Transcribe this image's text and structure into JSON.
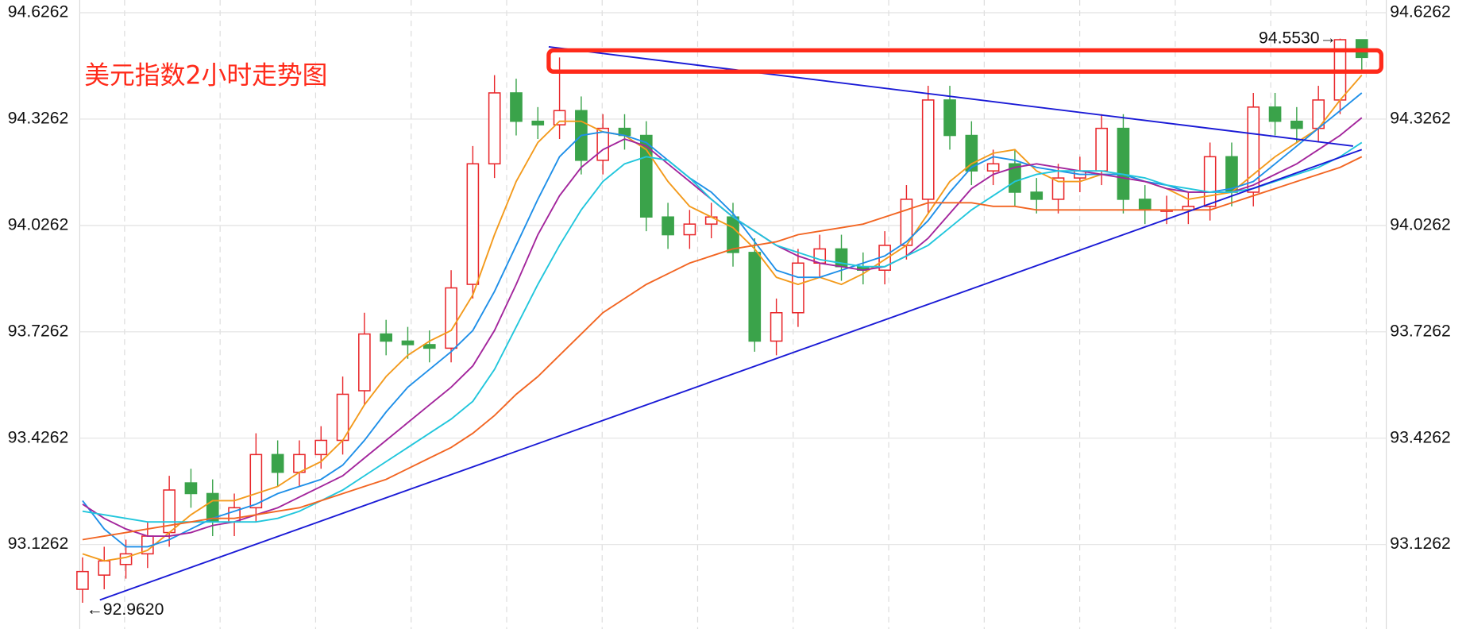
{
  "chart_data": {
    "type": "candlestick",
    "title": "美元指数2小时走势图",
    "ylim": [
      92.888,
      94.662
    ],
    "yticks": [
      93.1262,
      93.4262,
      93.7262,
      94.0262,
      94.3262,
      94.6262
    ],
    "grid": true,
    "up_color": "#e8262a",
    "down_color": "#3aa34a",
    "open": [
      93.0,
      93.04,
      93.07,
      93.1,
      93.16,
      93.3,
      93.27,
      93.19,
      93.23,
      93.38,
      93.33,
      93.38,
      93.42,
      93.56,
      93.72,
      93.7,
      93.69,
      93.68,
      93.86,
      94.2,
      94.4,
      94.32,
      94.31,
      94.35,
      94.21,
      94.3,
      94.28,
      94.05,
      94.0,
      94.03,
      94.05,
      93.95,
      93.7,
      93.78,
      93.92,
      93.96,
      93.91,
      93.9,
      93.97,
      94.1,
      94.38,
      94.28,
      94.18,
      94.2,
      94.12,
      94.1,
      94.16,
      94.18,
      94.3,
      94.1,
      94.07,
      94.07,
      94.08,
      94.22,
      94.12,
      94.36,
      94.32,
      94.3,
      94.38,
      94.55
    ],
    "high": [
      93.09,
      93.12,
      93.14,
      93.19,
      93.32,
      93.34,
      93.31,
      93.27,
      93.44,
      93.42,
      93.42,
      93.46,
      93.6,
      93.78,
      93.76,
      93.74,
      93.73,
      93.9,
      94.25,
      94.45,
      94.44,
      94.36,
      94.5,
      94.39,
      94.34,
      94.34,
      94.32,
      94.09,
      94.07,
      94.09,
      94.09,
      93.99,
      93.82,
      93.96,
      94.0,
      94.0,
      93.95,
      94.01,
      94.14,
      94.42,
      94.42,
      94.32,
      94.24,
      94.24,
      94.16,
      94.2,
      94.22,
      94.34,
      94.34,
      94.14,
      94.11,
      94.12,
      94.26,
      94.26,
      94.4,
      94.4,
      94.36,
      94.42,
      94.553,
      94.54
    ],
    "low": [
      92.962,
      93.0,
      93.03,
      93.06,
      93.12,
      93.23,
      93.15,
      93.15,
      93.19,
      93.29,
      93.29,
      93.34,
      93.38,
      93.52,
      93.66,
      93.65,
      93.64,
      93.64,
      93.82,
      94.16,
      94.28,
      94.27,
      94.27,
      94.17,
      94.17,
      94.24,
      94.01,
      93.96,
      93.96,
      93.99,
      93.91,
      93.67,
      93.66,
      93.74,
      93.88,
      93.87,
      93.86,
      93.86,
      93.93,
      94.06,
      94.24,
      94.14,
      94.14,
      94.08,
      94.06,
      94.06,
      94.12,
      94.14,
      94.06,
      94.03,
      94.03,
      94.03,
      94.04,
      94.08,
      94.08,
      94.28,
      94.26,
      94.26,
      94.34,
      94.46
    ],
    "close": [
      93.05,
      93.08,
      93.1,
      93.15,
      93.28,
      93.27,
      93.19,
      93.23,
      93.38,
      93.33,
      93.38,
      93.42,
      93.55,
      93.72,
      93.7,
      93.69,
      93.68,
      93.85,
      94.2,
      94.4,
      94.32,
      94.31,
      94.35,
      94.21,
      94.3,
      94.28,
      94.05,
      94.0,
      94.03,
      94.05,
      93.95,
      93.7,
      93.78,
      93.92,
      93.96,
      93.91,
      93.9,
      93.97,
      94.1,
      94.38,
      94.28,
      94.18,
      94.2,
      94.12,
      94.1,
      94.16,
      94.18,
      94.3,
      94.1,
      94.07,
      94.07,
      94.08,
      94.22,
      94.12,
      94.36,
      94.32,
      94.3,
      94.38,
      94.55,
      94.5
    ],
    "series": [
      {
        "color": "#f39a1c",
        "values": [
          93.1,
          93.08,
          93.09,
          93.11,
          93.16,
          93.21,
          93.25,
          93.25,
          93.27,
          93.29,
          93.33,
          93.36,
          93.42,
          93.52,
          93.6,
          93.66,
          93.7,
          93.73,
          93.83,
          94.0,
          94.15,
          94.26,
          94.32,
          94.32,
          94.29,
          94.28,
          94.24,
          94.15,
          94.08,
          94.05,
          94.02,
          93.96,
          93.88,
          93.86,
          93.88,
          93.86,
          93.89,
          93.93,
          93.97,
          94.06,
          94.15,
          94.2,
          94.23,
          94.24,
          94.18,
          94.15,
          94.15,
          94.17,
          94.17,
          94.15,
          94.13,
          94.1,
          94.11,
          94.12,
          94.17,
          94.22,
          94.26,
          94.3,
          94.38,
          94.45
        ]
      },
      {
        "color": "#1e8fe8",
        "values": [
          93.25,
          93.17,
          93.12,
          93.12,
          93.14,
          93.17,
          93.2,
          93.22,
          93.24,
          93.27,
          93.29,
          93.31,
          93.35,
          93.42,
          93.5,
          93.57,
          93.62,
          93.67,
          93.73,
          93.84,
          93.97,
          94.1,
          94.22,
          94.28,
          94.29,
          94.28,
          94.26,
          94.21,
          94.16,
          94.12,
          94.06,
          93.98,
          93.9,
          93.88,
          93.88,
          93.9,
          93.92,
          93.94,
          93.98,
          94.04,
          94.12,
          94.19,
          94.22,
          94.21,
          94.19,
          94.18,
          94.17,
          94.17,
          94.17,
          94.15,
          94.14,
          94.12,
          94.12,
          94.13,
          94.15,
          94.2,
          94.25,
          94.3,
          94.35,
          94.4
        ]
      },
      {
        "color": "#a3259c",
        "values": [
          93.24,
          93.2,
          93.17,
          93.15,
          93.15,
          93.16,
          93.18,
          93.19,
          93.21,
          93.23,
          93.26,
          93.29,
          93.32,
          93.37,
          93.42,
          93.47,
          93.52,
          93.57,
          93.63,
          93.73,
          93.86,
          94.0,
          94.11,
          94.19,
          94.24,
          94.27,
          94.25,
          94.2,
          94.15,
          94.1,
          94.05,
          94.01,
          93.97,
          93.94,
          93.92,
          93.91,
          93.9,
          93.91,
          93.94,
          93.99,
          94.06,
          94.13,
          94.17,
          94.19,
          94.2,
          94.19,
          94.18,
          94.17,
          94.16,
          94.15,
          94.13,
          94.12,
          94.12,
          94.12,
          94.14,
          94.17,
          94.2,
          94.24,
          94.28,
          94.33
        ]
      },
      {
        "color": "#21c6dc",
        "values": [
          93.22,
          93.21,
          93.2,
          93.19,
          93.19,
          93.19,
          93.19,
          93.19,
          93.19,
          93.2,
          93.22,
          93.25,
          93.28,
          93.32,
          93.36,
          93.4,
          93.44,
          93.48,
          93.53,
          93.62,
          93.74,
          93.86,
          93.97,
          94.07,
          94.15,
          94.2,
          94.22,
          94.21,
          94.16,
          94.1,
          94.05,
          94.01,
          93.97,
          93.95,
          93.93,
          93.92,
          93.91,
          93.91,
          93.94,
          93.97,
          94.02,
          94.07,
          94.11,
          94.15,
          94.17,
          94.18,
          94.18,
          94.18,
          94.17,
          94.16,
          94.14,
          94.13,
          94.12,
          94.12,
          94.13,
          94.15,
          94.17,
          94.19,
          94.22,
          94.26
        ]
      },
      {
        "color": "#f26522",
        "values": [
          93.14,
          93.15,
          93.16,
          93.17,
          93.18,
          93.19,
          93.2,
          93.2,
          93.21,
          93.22,
          93.23,
          93.25,
          93.27,
          93.29,
          93.31,
          93.34,
          93.37,
          93.4,
          93.44,
          93.49,
          93.55,
          93.6,
          93.66,
          93.72,
          93.78,
          93.82,
          93.86,
          93.89,
          93.92,
          93.94,
          93.96,
          93.97,
          93.98,
          94.0,
          94.01,
          94.02,
          94.03,
          94.05,
          94.07,
          94.09,
          94.09,
          94.09,
          94.08,
          94.08,
          94.07,
          94.07,
          94.07,
          94.07,
          94.07,
          94.07,
          94.07,
          94.07,
          94.07,
          94.09,
          94.11,
          94.13,
          94.15,
          94.17,
          94.19,
          94.22
        ]
      }
    ],
    "trendlines": [
      {
        "color": "#1a1ad6",
        "x": [
          0.8,
          59
        ],
        "values": [
          92.97,
          94.24
        ]
      },
      {
        "color": "#1a1ad6",
        "x": [
          21.5,
          58.6
        ],
        "values": [
          94.53,
          94.25
        ]
      }
    ],
    "zone": {
      "color": "#ff2a1a",
      "x": [
        21.5,
        59.9
      ],
      "values": [
        94.46,
        94.52
      ]
    },
    "annotations": [
      {
        "text": "94.5530→",
        "index": 58
      },
      {
        "text": "←92.9620",
        "index": 0
      }
    ]
  }
}
